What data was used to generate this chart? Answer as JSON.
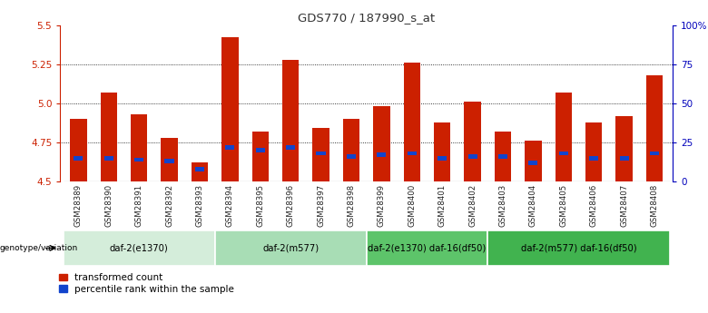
{
  "title": "GDS770 / 187990_s_at",
  "samples": [
    "GSM28389",
    "GSM28390",
    "GSM28391",
    "GSM28392",
    "GSM28393",
    "GSM28394",
    "GSM28395",
    "GSM28396",
    "GSM28397",
    "GSM28398",
    "GSM28399",
    "GSM28400",
    "GSM28401",
    "GSM28402",
    "GSM28403",
    "GSM28404",
    "GSM28405",
    "GSM28406",
    "GSM28407",
    "GSM28408"
  ],
  "red_values": [
    4.9,
    5.07,
    4.93,
    4.78,
    4.62,
    5.42,
    4.82,
    5.28,
    4.84,
    4.9,
    4.98,
    5.26,
    4.88,
    5.01,
    4.82,
    4.76,
    5.07,
    4.88,
    4.92,
    5.18
  ],
  "blue_percentiles": [
    15,
    15,
    14,
    13,
    8,
    22,
    20,
    22,
    18,
    16,
    17,
    18,
    15,
    16,
    16,
    12,
    18,
    15,
    15,
    18
  ],
  "ymin": 4.5,
  "ymax": 5.5,
  "yticks": [
    4.5,
    4.75,
    5.0,
    5.25,
    5.5
  ],
  "right_yticks_pct": [
    0,
    25,
    50,
    75,
    100
  ],
  "right_yticklabels": [
    "0",
    "25",
    "50",
    "75",
    "100%"
  ],
  "groups": [
    {
      "label": "daf-2(e1370)",
      "start": 0,
      "end": 5,
      "color": "#d4edda"
    },
    {
      "label": "daf-2(m577)",
      "start": 5,
      "end": 10,
      "color": "#a8ddb5"
    },
    {
      "label": "daf-2(e1370) daf-16(df50)",
      "start": 10,
      "end": 14,
      "color": "#5dc46a"
    },
    {
      "label": "daf-2(m577) daf-16(df50)",
      "start": 14,
      "end": 20,
      "color": "#41b34f"
    }
  ],
  "bar_color_red": "#cc2000",
  "bar_color_blue": "#1144cc",
  "bar_width": 0.55,
  "title_color": "#333333",
  "left_axis_color": "#cc2000",
  "right_axis_color": "#0000bb",
  "legend_label_red": "transformed count",
  "legend_label_blue": "percentile rank within the sample",
  "genotype_label": "genotype/variation"
}
